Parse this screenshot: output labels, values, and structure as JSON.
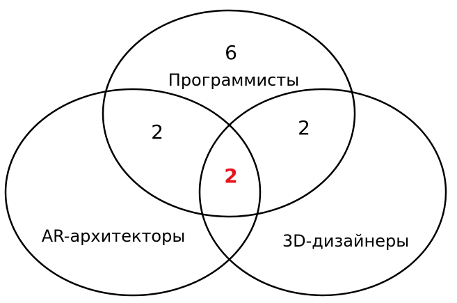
{
  "sets": {
    "programmers": "Программисты",
    "ar_architects": "AR-архитекторы",
    "designers_3d": "3D-дизайнеры"
  },
  "regions": {
    "programmers_only": "6",
    "programmers_ar": "2",
    "programmers_3d": "2",
    "all_three": "2"
  },
  "colors": {
    "outline": "#000000",
    "text": "#000000",
    "highlight": "#e8141b"
  }
}
